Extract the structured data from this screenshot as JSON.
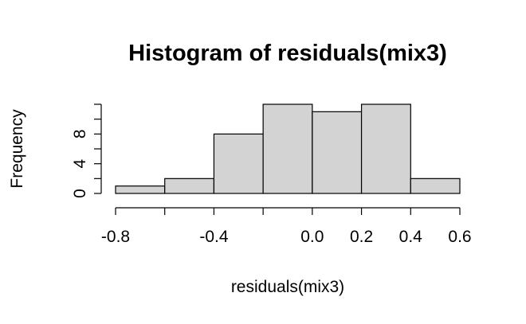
{
  "chart_data": {
    "type": "bar",
    "title": "Histogram of residuals(mix3)",
    "xlabel": "residuals(mix3)",
    "ylabel": "Frequency",
    "bin_edges": [
      -0.8,
      -0.6,
      -0.4,
      -0.2,
      0.0,
      0.2,
      0.4,
      0.6
    ],
    "values": [
      1,
      2,
      8,
      12,
      11,
      12,
      2
    ],
    "xlim": [
      -0.8,
      0.6
    ],
    "ylim": [
      0,
      12
    ],
    "x_ticks": [
      -0.8,
      -0.6,
      -0.4,
      -0.2,
      0.0,
      0.2,
      0.4,
      0.6
    ],
    "x_tick_labels": [
      "-0.8",
      "",
      "-0.4",
      "",
      "0.0",
      "0.2",
      "0.4",
      "0.6"
    ],
    "y_ticks": [
      0,
      2,
      4,
      6,
      8,
      10,
      12
    ],
    "y_tick_labels": [
      "0",
      "",
      "4",
      "",
      "8",
      "",
      ""
    ],
    "grid": false,
    "colors": {
      "bar_fill": "#d3d3d3",
      "bar_stroke": "#000000",
      "axis": "#000000"
    }
  }
}
